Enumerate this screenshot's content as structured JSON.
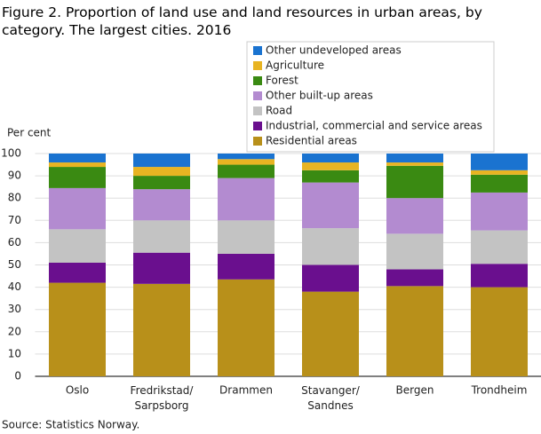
{
  "chart_data": {
    "type": "stacked_bar",
    "title": "Figure 2. Proportion of land use and land resources in urban areas, by category. The largest cities. 2016",
    "y_label": "Per cent",
    "source": "Source: Statistics Norway.",
    "categories": [
      "Oslo",
      "Fredrikstad/ Sarpsborg",
      "Drammen",
      "Stavanger/ Sandnes",
      "Bergen",
      "Trondheim"
    ],
    "series": [
      {
        "name": "Residential areas",
        "color": "#b8901a",
        "values": [
          42,
          41.5,
          43.5,
          38,
          40.5,
          40
        ]
      },
      {
        "name": "Industrial, commercial and service areas",
        "color": "#6a0f8e",
        "values": [
          9,
          14,
          11.5,
          12,
          7.5,
          10.5
        ]
      },
      {
        "name": "Road",
        "color": "#c3c3c3",
        "values": [
          15,
          14.5,
          15,
          16.5,
          16,
          15
        ]
      },
      {
        "name": "Other built-up areas",
        "color": "#b38bd0",
        "values": [
          18.5,
          14,
          19,
          20.5,
          16,
          17
        ]
      },
      {
        "name": "Forest",
        "color": "#3a8a12",
        "values": [
          9.5,
          6,
          6,
          5.5,
          14.5,
          8
        ]
      },
      {
        "name": "Agriculture",
        "color": "#e8b422",
        "values": [
          2,
          4,
          2.5,
          3.5,
          1.5,
          2
        ]
      },
      {
        "name": "Other undeveloped areas",
        "color": "#1a73d0",
        "values": [
          4,
          6,
          2.5,
          4,
          4,
          7.5
        ]
      }
    ],
    "ylim": [
      0,
      100
    ],
    "yticks": [
      0,
      10,
      20,
      30,
      40,
      50,
      60,
      70,
      80,
      90,
      100
    ],
    "grid": true
  }
}
